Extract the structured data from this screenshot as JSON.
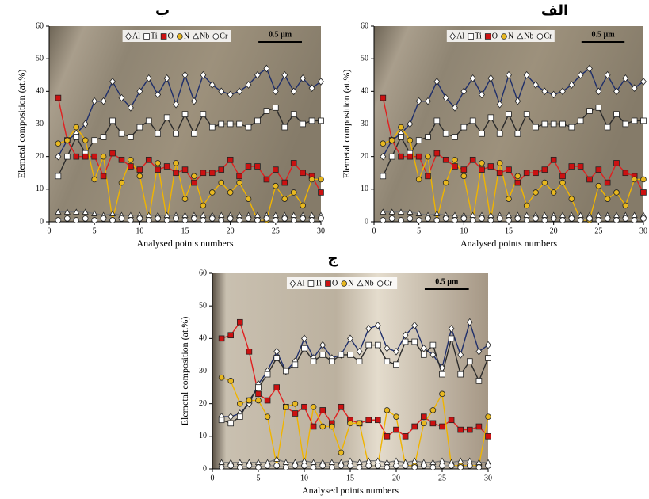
{
  "chart_data": [
    {
      "type": "line",
      "title": "ب",
      "xlabel": "Analysed points numbers",
      "ylabel": "Elemetal composition (at.%)",
      "annotation": "0.5 µm",
      "x": [
        1,
        2,
        3,
        4,
        5,
        6,
        7,
        8,
        9,
        10,
        11,
        12,
        13,
        14,
        15,
        16,
        17,
        18,
        19,
        20,
        21,
        22,
        23,
        24,
        25,
        26,
        27,
        28,
        29,
        30
      ],
      "xlim": [
        0,
        30
      ],
      "xticks": [
        0,
        5,
        10,
        15,
        20,
        25,
        30
      ],
      "ylim": [
        0,
        60
      ],
      "yticks": [
        0,
        10,
        20,
        30,
        40,
        50,
        60
      ],
      "series": [
        {
          "name": "Al",
          "color": "#1f2f6b",
          "marker": "diamond",
          "marker_color": "#ffffff",
          "values": [
            20,
            25,
            27,
            30,
            37,
            37,
            43,
            38,
            35,
            40,
            44,
            39,
            44,
            36,
            45,
            37,
            45,
            42,
            40,
            39,
            40,
            42,
            45,
            47,
            40,
            45,
            40,
            44,
            41,
            43
          ]
        },
        {
          "name": "Ti",
          "color": "#2b2b2b",
          "marker": "square",
          "marker_color": "#ffffff",
          "values": [
            14,
            20,
            26,
            21,
            25,
            26,
            31,
            27,
            26,
            29,
            31,
            27,
            32,
            27,
            33,
            27,
            33,
            29,
            30,
            30,
            30,
            29,
            31,
            34,
            35,
            29,
            33,
            30,
            31,
            31
          ]
        },
        {
          "name": "O",
          "color": "#e02020",
          "marker": "square",
          "marker_color": "#cc1111",
          "values": [
            38,
            25,
            20,
            20,
            20,
            14,
            21,
            19,
            17,
            16,
            19,
            16,
            17,
            15,
            16,
            12,
            15,
            15,
            16,
            19,
            14,
            17,
            17,
            13,
            16,
            12,
            18,
            15,
            14,
            9
          ]
        },
        {
          "name": "N",
          "color": "#f0b400",
          "marker": "circle",
          "marker_color": "#e8b820",
          "values": [
            24,
            25,
            29,
            25,
            13,
            20,
            0.5,
            12,
            19,
            14,
            0.5,
            18,
            0.5,
            18,
            7,
            14,
            5,
            9,
            12,
            9,
            12,
            7,
            0.5,
            0.5,
            11,
            7,
            9,
            5,
            13,
            13
          ]
        },
        {
          "name": "Nb",
          "color": "#777777",
          "marker": "triangle",
          "marker_color": "#ffffff",
          "values": [
            3,
            3,
            3,
            3,
            2.5,
            2,
            2.5,
            2,
            2,
            2,
            2,
            2,
            2,
            2,
            2,
            2,
            2,
            2,
            2,
            2,
            2,
            2,
            2,
            2,
            2,
            2,
            2,
            2,
            2,
            2
          ]
        },
        {
          "name": "Cr",
          "color": "#999999",
          "marker": "circle",
          "marker_color": "#ffffff",
          "values": [
            0.5,
            1,
            0.5,
            1,
            0.5,
            1,
            0.5,
            1,
            0.5,
            1,
            0.5,
            1,
            0.5,
            1,
            0.5,
            1,
            0.5,
            1,
            0.5,
            1,
            0.5,
            1,
            0.5,
            1,
            0.5,
            1,
            0.5,
            1,
            0.5,
            1
          ]
        }
      ]
    },
    {
      "type": "line",
      "title": "الف",
      "xlabel": "Analysed points numbers",
      "ylabel": "Elemetal composition (at.%)",
      "annotation": "0.5 µm",
      "x": [
        1,
        2,
        3,
        4,
        5,
        6,
        7,
        8,
        9,
        10,
        11,
        12,
        13,
        14,
        15,
        16,
        17,
        18,
        19,
        20,
        21,
        22,
        23,
        24,
        25,
        26,
        27,
        28,
        29,
        30
      ],
      "xlim": [
        0,
        30
      ],
      "xticks": [
        0,
        5,
        10,
        15,
        20,
        25,
        30
      ],
      "ylim": [
        0,
        60
      ],
      "yticks": [
        0,
        10,
        20,
        30,
        40,
        50,
        60
      ],
      "series": [
        {
          "name": "Al",
          "color": "#1f2f6b",
          "marker": "diamond",
          "marker_color": "#ffffff",
          "values": [
            20,
            25,
            27,
            30,
            37,
            37,
            43,
            38,
            35,
            40,
            44,
            39,
            44,
            36,
            45,
            37,
            45,
            42,
            40,
            39,
            40,
            42,
            45,
            47,
            40,
            45,
            40,
            44,
            41,
            43
          ]
        },
        {
          "name": "Ti",
          "color": "#2b2b2b",
          "marker": "square",
          "marker_color": "#ffffff",
          "values": [
            14,
            20,
            26,
            21,
            25,
            26,
            31,
            27,
            26,
            29,
            31,
            27,
            32,
            27,
            33,
            27,
            33,
            29,
            30,
            30,
            30,
            29,
            31,
            34,
            35,
            29,
            33,
            30,
            31,
            31
          ]
        },
        {
          "name": "O",
          "color": "#e02020",
          "marker": "square",
          "marker_color": "#cc1111",
          "values": [
            38,
            25,
            20,
            20,
            20,
            14,
            21,
            19,
            17,
            16,
            19,
            16,
            17,
            15,
            16,
            12,
            15,
            15,
            16,
            19,
            14,
            17,
            17,
            13,
            16,
            12,
            18,
            15,
            14,
            9
          ]
        },
        {
          "name": "N",
          "color": "#f0b400",
          "marker": "circle",
          "marker_color": "#e8b820",
          "values": [
            24,
            25,
            29,
            25,
            13,
            20,
            0.5,
            12,
            19,
            14,
            0.5,
            18,
            0.5,
            18,
            7,
            14,
            5,
            9,
            12,
            9,
            12,
            7,
            0.5,
            0.5,
            11,
            7,
            9,
            5,
            13,
            13
          ]
        },
        {
          "name": "Nb",
          "color": "#777777",
          "marker": "triangle",
          "marker_color": "#ffffff",
          "values": [
            3,
            3,
            3,
            3,
            2.5,
            2,
            2.5,
            2,
            2,
            2,
            2,
            2,
            2,
            2,
            2,
            2,
            2,
            2,
            2,
            2,
            2,
            2,
            2,
            2,
            2,
            2,
            2,
            2,
            2,
            2
          ]
        },
        {
          "name": "Cr",
          "color": "#999999",
          "marker": "circle",
          "marker_color": "#ffffff",
          "values": [
            0.5,
            1,
            0.5,
            1,
            0.5,
            1,
            0.5,
            1,
            0.5,
            1,
            0.5,
            1,
            0.5,
            1,
            0.5,
            1,
            0.5,
            1,
            0.5,
            1,
            0.5,
            1,
            0.5,
            1,
            0.5,
            1,
            0.5,
            1,
            0.5,
            1
          ]
        }
      ]
    },
    {
      "type": "line",
      "title": "ج",
      "xlabel": "Analysed points numbers",
      "ylabel": "Elemetal composition (at.%)",
      "annotation": "0.5 µm",
      "x": [
        1,
        2,
        3,
        4,
        5,
        6,
        7,
        8,
        9,
        10,
        11,
        12,
        13,
        14,
        15,
        16,
        17,
        18,
        19,
        20,
        21,
        22,
        23,
        24,
        25,
        26,
        27,
        28,
        29,
        30
      ],
      "xlim": [
        0,
        30
      ],
      "xticks": [
        0,
        5,
        10,
        15,
        20,
        25,
        30
      ],
      "ylim": [
        0,
        60
      ],
      "yticks": [
        0,
        10,
        20,
        30,
        40,
        50,
        60
      ],
      "series": [
        {
          "name": "Al",
          "color": "#1f2f6b",
          "marker": "diamond",
          "marker_color": "#ffffff",
          "values": [
            16,
            16,
            17,
            20,
            26,
            30,
            36,
            30,
            33,
            40,
            34,
            38,
            34,
            35,
            40,
            36,
            43,
            44,
            37,
            36,
            41,
            44,
            37,
            35,
            31,
            43,
            35,
            45,
            36,
            38
          ]
        },
        {
          "name": "Ti",
          "color": "#2b2b2b",
          "marker": "square",
          "marker_color": "#ffffff",
          "values": [
            15,
            14,
            16,
            21,
            25,
            29,
            34,
            30,
            32,
            37,
            33,
            35,
            33,
            35,
            35,
            33,
            38,
            38,
            33,
            32,
            39,
            39,
            35,
            38,
            29,
            40,
            29,
            33,
            27,
            34
          ]
        },
        {
          "name": "O",
          "color": "#e02020",
          "marker": "square",
          "marker_color": "#cc1111",
          "values": [
            40,
            41,
            45,
            36,
            23,
            21,
            25,
            19,
            17,
            19,
            13,
            18,
            14,
            19,
            15,
            14,
            15,
            15,
            10,
            12,
            10,
            13,
            16,
            14,
            13,
            15,
            12,
            12,
            13,
            10
          ]
        },
        {
          "name": "N",
          "color": "#f0b400",
          "marker": "circle",
          "marker_color": "#e8b820",
          "values": [
            28,
            27,
            20,
            21,
            21,
            16,
            1,
            19,
            20,
            1,
            19,
            13,
            13,
            5,
            14,
            14,
            1,
            1,
            18,
            16,
            1,
            1,
            14,
            18,
            23,
            1,
            1,
            1,
            1,
            16
          ]
        },
        {
          "name": "Nb",
          "color": "#777777",
          "marker": "triangle",
          "marker_color": "#ffffff",
          "values": [
            2,
            2,
            2,
            2,
            2,
            2,
            3,
            2,
            2,
            2.5,
            2,
            2,
            2,
            2,
            2.5,
            2,
            2.5,
            2.5,
            2,
            2.5,
            2,
            2.5,
            2,
            2,
            2.5,
            2,
            2.5,
            2.5,
            2,
            2
          ]
        },
        {
          "name": "Cr",
          "color": "#999999",
          "marker": "circle",
          "marker_color": "#ffffff",
          "values": [
            0.5,
            1,
            0.5,
            1,
            0.5,
            1,
            1,
            0.5,
            1,
            1,
            0.5,
            1,
            0.5,
            1,
            1,
            0.5,
            1,
            1,
            0.5,
            1,
            1,
            0.5,
            1,
            0.5,
            1,
            1,
            0.5,
            1,
            0.5,
            1
          ]
        }
      ]
    }
  ]
}
